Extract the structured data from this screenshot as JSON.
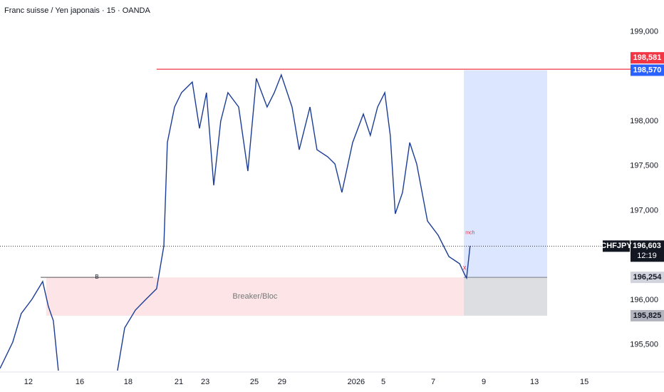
{
  "chart_data": {
    "type": "line",
    "title": "Franc suisse / Yen japonais · 15 · OANDA",
    "series": [
      {
        "name": "CHFJPY",
        "color": "#1c3d94",
        "x": [
          -0.14,
          0.37,
          0.71,
          1.14,
          1.57,
          1.8,
          2.0,
          2.2,
          null,
          4.57,
          4.86,
          5.29,
          5.71,
          6.14,
          6.43,
          6.57,
          6.86,
          7.14,
          7.57,
          7.86,
          8.14,
          8.43,
          8.71,
          9.0,
          9.43,
          9.8,
          10.14,
          10.57,
          10.86,
          11.14,
          11.57,
          11.86,
          12.29,
          12.57,
          13.0,
          13.29,
          13.57,
          14.0,
          14.43,
          14.71,
          15.0,
          15.29,
          15.51,
          15.71,
          16.0,
          16.29,
          16.57,
          17.0,
          17.43,
          17.86,
          18.29,
          18.49,
          18.57,
          18.71
        ],
        "values": [
          195.235,
          195.53,
          195.849,
          196.008,
          196.207,
          195.928,
          195.769,
          195.211,
          null,
          195.211,
          195.689,
          195.888,
          196.008,
          196.127,
          196.606,
          197.761,
          198.159,
          198.319,
          198.438,
          197.92,
          198.319,
          197.283,
          198.0,
          198.319,
          198.159,
          197.442,
          198.478,
          198.159,
          198.319,
          198.518,
          198.159,
          197.681,
          198.159,
          197.681,
          197.602,
          197.522,
          197.203,
          197.761,
          198.08,
          197.841,
          198.159,
          198.319,
          197.841,
          196.964,
          197.203,
          197.761,
          197.522,
          196.884,
          196.725,
          196.486,
          196.406,
          196.287,
          196.247,
          196.606
        ]
      }
    ],
    "xlim": [
      -0.14,
      24.0
    ],
    "xticks": [
      {
        "value": 1.0,
        "label": "12"
      },
      {
        "value": 3.06,
        "label": "16"
      },
      {
        "value": 5.0,
        "label": "18"
      },
      {
        "value": 7.03,
        "label": "21"
      },
      {
        "value": 8.09,
        "label": "23"
      },
      {
        "value": 10.06,
        "label": "25"
      },
      {
        "value": 11.17,
        "label": "29"
      },
      {
        "value": 14.14,
        "label": "2026"
      },
      {
        "value": 15.23,
        "label": "5"
      },
      {
        "value": 17.23,
        "label": "7"
      },
      {
        "value": 19.26,
        "label": "9"
      },
      {
        "value": 21.29,
        "label": "13"
      },
      {
        "value": 23.29,
        "label": "15"
      }
    ],
    "ylim": [
      195.195,
      199.355
    ],
    "yticks": [
      {
        "value": 195.5,
        "label": "195,500"
      },
      {
        "value": 196.0,
        "label": "196,000"
      },
      {
        "value": 197.0,
        "label": "197,000"
      },
      {
        "value": 197.5,
        "label": "197,500"
      },
      {
        "value": 198.0,
        "label": "198,000"
      },
      {
        "value": 199.0,
        "label": "199,000"
      }
    ],
    "resistance": {
      "value": 198.581,
      "label": "198,581",
      "color": "#f23645",
      "x_start": 6.14
    },
    "target": {
      "value": 198.57,
      "label": "198,570",
      "color": "#2962ff"
    },
    "last_price": {
      "value": 196.603,
      "label": "196,603",
      "symbol": "CHFJPY",
      "countdown": "12:19"
    },
    "entry": {
      "value": 196.254,
      "label": "196,254"
    },
    "stop": {
      "value": 195.825,
      "label": "195,825"
    },
    "position_x": [
      18.46,
      21.8
    ],
    "zone": {
      "label": "Breaker/Bloc",
      "top": 196.254,
      "bottom": 195.825,
      "x": [
        1.71,
        18.46
      ]
    },
    "breaker_line": {
      "label": "B",
      "value": 196.254,
      "x": [
        1.49,
        6.0
      ]
    },
    "marks": [
      {
        "label": "mch",
        "x": 18.71,
        "value": 196.75
      },
      {
        "label": "x",
        "x": 18.49,
        "value": 196.36
      }
    ]
  }
}
